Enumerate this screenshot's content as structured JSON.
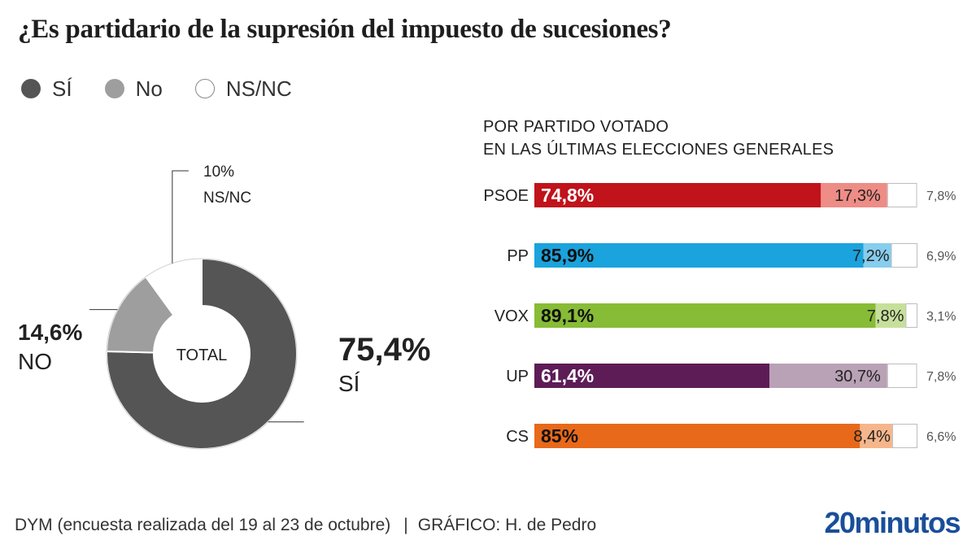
{
  "title": "¿Es partidario de la supresión del impuesto de sucesiones?",
  "legend": [
    {
      "label": "SÍ",
      "color": "#555555"
    },
    {
      "label": "No",
      "color": "#9e9e9e"
    },
    {
      "label": "NS/NC",
      "color": "#ffffff"
    }
  ],
  "subhead": {
    "line1": "POR PARTIDO VOTADO",
    "line2": "EN LAS ÚLTIMAS ELECCIONES GENERALES"
  },
  "chart_data": [
    {
      "type": "pie",
      "center_label": "TOTAL",
      "slices": [
        {
          "value": 75.4,
          "value_label": "75,4%",
          "category_label": "SÍ",
          "color": "#555555"
        },
        {
          "value": 14.6,
          "value_label": "14,6%",
          "category_label": "NO",
          "color": "#9e9e9e"
        },
        {
          "value": 10,
          "value_label": "10%",
          "category_label": "NS/NC",
          "color": "#ffffff"
        }
      ]
    },
    {
      "type": "bar",
      "stacked": true,
      "orientation": "horizontal",
      "categories": [
        "PSOE",
        "PP",
        "VOX",
        "UP",
        "CS"
      ],
      "series_colors": {
        "si": [
          "#c0131c",
          "#1aa3dd",
          "#87bc36",
          "#5e1c57",
          "#e8691a"
        ],
        "no": [
          "#ee8c86",
          "#86cdee",
          "#c6e09b",
          "#b9a1b6",
          "#f6b68c"
        ]
      },
      "rows": [
        {
          "party": "PSOE",
          "si": 74.8,
          "no": 17.3,
          "nsnc": 7.8,
          "si_label": "74,8%",
          "no_label": "17,3%",
          "nsnc_label": "7,8%"
        },
        {
          "party": "PP",
          "si": 85.9,
          "no": 7.2,
          "nsnc": 6.9,
          "si_label": "85,9%",
          "no_label": "7,2%",
          "nsnc_label": "6,9%"
        },
        {
          "party": "VOX",
          "si": 89.1,
          "no": 7.8,
          "nsnc": 3.1,
          "si_label": "89,1%",
          "no_label": "7,8%",
          "nsnc_label": "3,1%"
        },
        {
          "party": "UP",
          "si": 61.4,
          "no": 30.7,
          "nsnc": 7.8,
          "si_label": "61,4%",
          "no_label": "30,7%",
          "nsnc_label": "7,8%"
        },
        {
          "party": "CS",
          "si": 85,
          "no": 8.4,
          "nsnc": 6.6,
          "si_label": "85%",
          "no_label": "8,4%",
          "nsnc_label": "6,6%"
        }
      ]
    }
  ],
  "footer": {
    "source": "DYM (encuesta realizada del 19 al 23 de octubre)",
    "separator": "|",
    "credit": "GRÁFICO: H. de Pedro",
    "brand": "20minutos"
  }
}
